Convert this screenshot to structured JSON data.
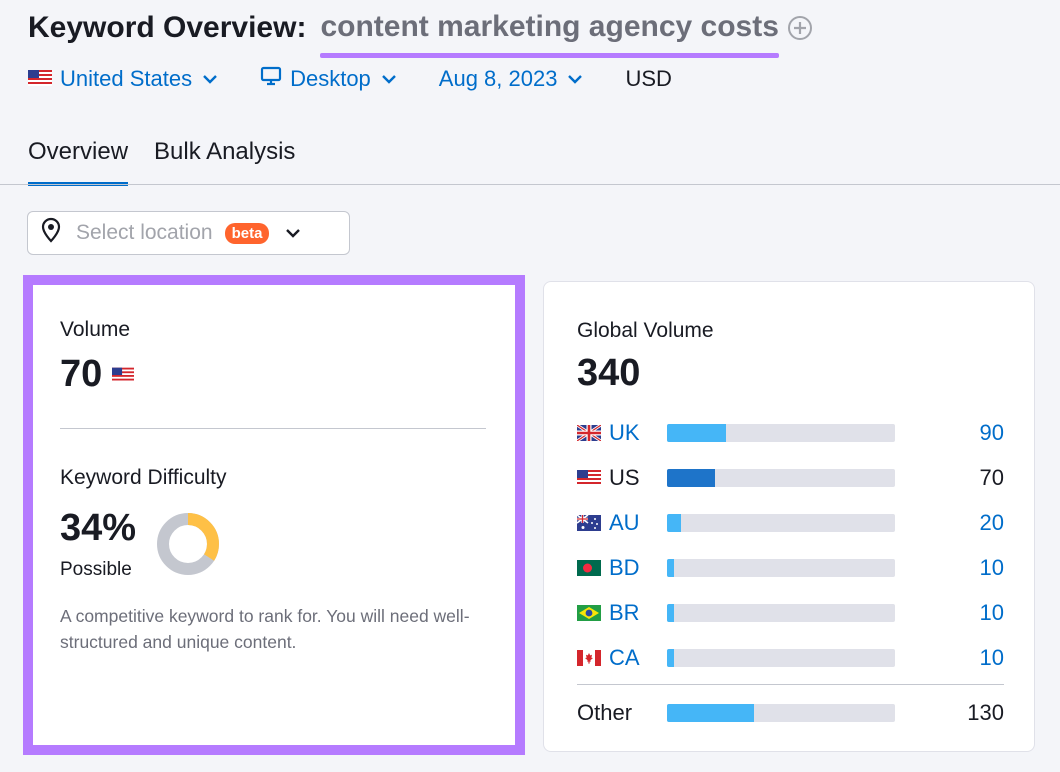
{
  "header": {
    "title": "Keyword Overview:",
    "keyword": "content marketing agency costs",
    "add_icon": "plus-circle-icon",
    "accent_color": "#b57bff"
  },
  "filters": {
    "country": "United States",
    "device": "Desktop",
    "date": "Aug 8, 2023",
    "currency": "USD"
  },
  "tabs": [
    {
      "label": "Overview",
      "active": true
    },
    {
      "label": "Bulk Analysis",
      "active": false
    }
  ],
  "location_select": {
    "placeholder": "Select location",
    "badge": "beta",
    "badge_color": "#ff642d"
  },
  "volume_card": {
    "volume_label": "Volume",
    "volume_value": "70",
    "kd_label": "Keyword Difficulty",
    "kd_value": "34%",
    "kd_rating": "Possible",
    "kd_percent": 34,
    "kd_color": "#fec046",
    "description": "A competitive keyword to rank for. You will need well-structured and unique content."
  },
  "global_card": {
    "label": "Global Volume",
    "value": "340",
    "rows": [
      {
        "code": "UK",
        "value": "90",
        "fraction": 0.26,
        "color": "#45b6f7",
        "linked": true
      },
      {
        "code": "US",
        "value": "70",
        "fraction": 0.21,
        "color": "#1e74c9",
        "linked": false
      },
      {
        "code": "AU",
        "value": "20",
        "fraction": 0.06,
        "color": "#45b6f7",
        "linked": true
      },
      {
        "code": "BD",
        "value": "10",
        "fraction": 0.03,
        "color": "#45b6f7",
        "linked": true
      },
      {
        "code": "BR",
        "value": "10",
        "fraction": 0.03,
        "color": "#45b6f7",
        "linked": true
      },
      {
        "code": "CA",
        "value": "10",
        "fraction": 0.03,
        "color": "#45b6f7",
        "linked": true
      }
    ],
    "other": {
      "label": "Other",
      "value": "130",
      "fraction": 0.38,
      "color": "#45b6f7"
    }
  }
}
